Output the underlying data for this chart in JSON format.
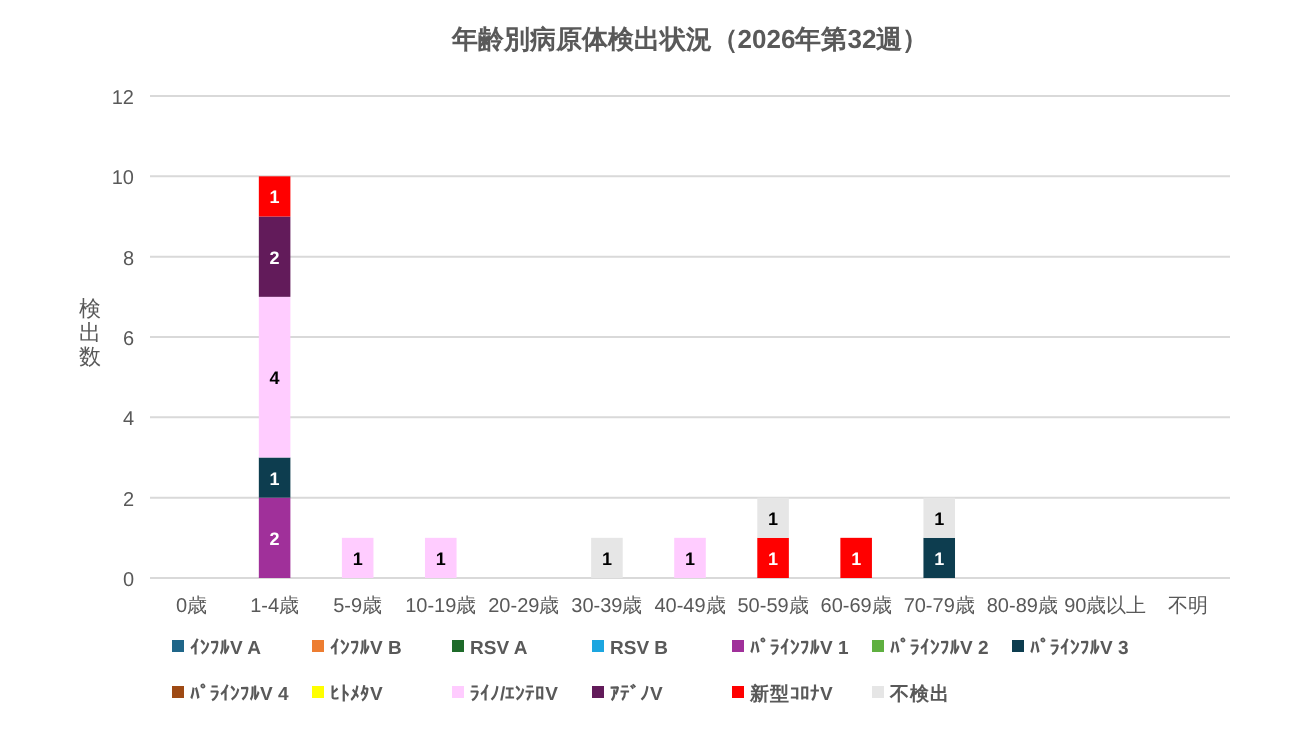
{
  "chart_data": {
    "type": "bar",
    "stacked": true,
    "title": "年齢別病原体検出状況（2026年第32週）",
    "ylabel": "検出数",
    "categories": [
      "0歳",
      "1-4歳",
      "5-9歳",
      "10-19歳",
      "20-29歳",
      "30-39歳",
      "40-49歳",
      "50-59歳",
      "60-69歳",
      "70-79歳",
      "80-89歳",
      "90歳以上",
      "不明"
    ],
    "ylim": [
      0,
      12
    ],
    "yticks": [
      0,
      2,
      4,
      6,
      8,
      10,
      12
    ],
    "grid": "y",
    "legend": "bottom",
    "data_labels": true,
    "series": [
      {
        "name": "ｲﾝﾌﾙV A",
        "color": "#1f6689",
        "values": [
          null,
          null,
          null,
          null,
          null,
          null,
          null,
          null,
          null,
          null,
          null,
          null,
          null
        ]
      },
      {
        "name": "ｲﾝﾌﾙV B",
        "color": "#ed7d31",
        "values": [
          null,
          null,
          null,
          null,
          null,
          null,
          null,
          null,
          null,
          null,
          null,
          null,
          null
        ]
      },
      {
        "name": "RSV A",
        "color": "#1e6b2a",
        "values": [
          null,
          null,
          null,
          null,
          null,
          null,
          null,
          null,
          null,
          null,
          null,
          null,
          null
        ]
      },
      {
        "name": "RSV B",
        "color": "#1ca6e0",
        "values": [
          null,
          null,
          null,
          null,
          null,
          null,
          null,
          null,
          null,
          null,
          null,
          null,
          null
        ]
      },
      {
        "name": "ﾊﾟﾗｲﾝﾌﾙV 1",
        "color": "#a0309a",
        "values": [
          null,
          2,
          null,
          null,
          null,
          null,
          null,
          null,
          null,
          null,
          null,
          null,
          null
        ]
      },
      {
        "name": "ﾊﾟﾗｲﾝﾌﾙV 2",
        "color": "#5fb040",
        "values": [
          null,
          null,
          null,
          null,
          null,
          null,
          null,
          null,
          null,
          null,
          null,
          null,
          null
        ]
      },
      {
        "name": "ﾊﾟﾗｲﾝﾌﾙV 3",
        "color": "#0d3d4f",
        "values": [
          null,
          1,
          null,
          null,
          null,
          null,
          null,
          null,
          null,
          1,
          null,
          null,
          null
        ]
      },
      {
        "name": "ﾊﾟﾗｲﾝﾌﾙV 4",
        "color": "#9e4a14",
        "values": [
          null,
          null,
          null,
          null,
          null,
          null,
          null,
          null,
          null,
          null,
          null,
          null,
          null
        ]
      },
      {
        "name": "ﾋﾄﾒﾀV",
        "color": "#ffff00",
        "values": [
          null,
          null,
          null,
          null,
          null,
          null,
          null,
          null,
          null,
          null,
          null,
          null,
          null
        ]
      },
      {
        "name": "ﾗｲﾉ/ｴﾝﾃﾛV",
        "color": "#ffccff",
        "values": [
          null,
          4,
          1,
          1,
          null,
          null,
          1,
          null,
          null,
          null,
          null,
          null,
          null
        ]
      },
      {
        "name": "ｱﾃﾞﾉV",
        "color": "#621b5a",
        "values": [
          null,
          2,
          null,
          null,
          null,
          null,
          null,
          null,
          null,
          null,
          null,
          null,
          null
        ]
      },
      {
        "name": "新型ｺﾛﾅV",
        "color": "#ff0000",
        "values": [
          null,
          1,
          null,
          null,
          null,
          null,
          null,
          1,
          1,
          null,
          null,
          null,
          null
        ]
      },
      {
        "name": "不検出",
        "color": "#e6e6e6",
        "values": [
          null,
          null,
          null,
          null,
          null,
          1,
          null,
          1,
          null,
          1,
          null,
          null,
          null
        ]
      }
    ]
  }
}
